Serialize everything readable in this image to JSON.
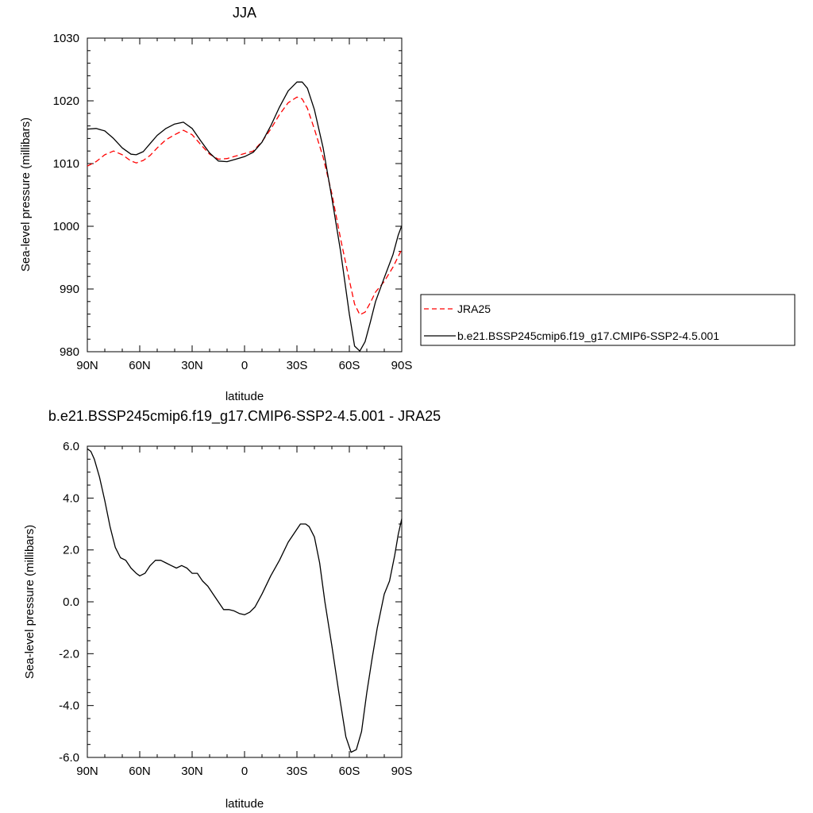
{
  "chart_data": [
    {
      "type": "line",
      "title": "JJA",
      "xlabel": "latitude",
      "ylabel": "Sea-level pressure (millibars)",
      "x_tick_labels": [
        "90N",
        "60N",
        "30N",
        "0",
        "30S",
        "60S",
        "90S"
      ],
      "x_tick_values": [
        90,
        60,
        30,
        0,
        -30,
        -60,
        -90
      ],
      "xlim": [
        90,
        -90
      ],
      "y_tick_labels": [
        "980",
        "990",
        "1000",
        "1010",
        "1020",
        "1030"
      ],
      "y_tick_values": [
        980,
        990,
        1000,
        1010,
        1020,
        1030
      ],
      "ylim": [
        980,
        1030
      ],
      "grid": false,
      "legend_position": "right",
      "series": [
        {
          "name": "JRA25",
          "color": "#ff0000",
          "dash": "dashed",
          "points": [
            [
              90,
              1009.6
            ],
            [
              85,
              1010.3
            ],
            [
              80,
              1011.4
            ],
            [
              75,
              1012.0
            ],
            [
              70,
              1011.4
            ],
            [
              65,
              1010.4
            ],
            [
              62,
              1010.1
            ],
            [
              58,
              1010.5
            ],
            [
              54,
              1011.3
            ],
            [
              50,
              1012.5
            ],
            [
              45,
              1013.8
            ],
            [
              40,
              1014.6
            ],
            [
              35,
              1015.3
            ],
            [
              30,
              1014.6
            ],
            [
              25,
              1013.0
            ],
            [
              20,
              1011.5
            ],
            [
              15,
              1010.7
            ],
            [
              10,
              1010.8
            ],
            [
              5,
              1011.2
            ],
            [
              0,
              1011.6
            ],
            [
              -5,
              1012.0
            ],
            [
              -10,
              1013.5
            ],
            [
              -15,
              1015.5
            ],
            [
              -20,
              1017.8
            ],
            [
              -25,
              1019.7
            ],
            [
              -30,
              1020.6
            ],
            [
              -33,
              1020.3
            ],
            [
              -36,
              1018.8
            ],
            [
              -40,
              1015.5
            ],
            [
              -45,
              1011.0
            ],
            [
              -50,
              1005.2
            ],
            [
              -55,
              998.0
            ],
            [
              -60,
              991.4
            ],
            [
              -63,
              987.6
            ],
            [
              -66,
              985.9
            ],
            [
              -69,
              986.3
            ],
            [
              -72,
              987.8
            ],
            [
              -75,
              989.5
            ],
            [
              -80,
              991.2
            ],
            [
              -85,
              993.5
            ],
            [
              -90,
              996.3
            ]
          ]
        },
        {
          "name": "b.e21.BSSP245cmip6.f19_g17.CMIP6-SSP2-4.5.001",
          "color": "#000000",
          "dash": "solid",
          "points": [
            [
              90,
              1015.5
            ],
            [
              85,
              1015.6
            ],
            [
              80,
              1015.2
            ],
            [
              75,
              1014.0
            ],
            [
              70,
              1012.5
            ],
            [
              65,
              1011.5
            ],
            [
              62,
              1011.4
            ],
            [
              58,
              1011.9
            ],
            [
              54,
              1013.2
            ],
            [
              50,
              1014.5
            ],
            [
              45,
              1015.6
            ],
            [
              40,
              1016.3
            ],
            [
              35,
              1016.6
            ],
            [
              30,
              1015.6
            ],
            [
              25,
              1013.6
            ],
            [
              20,
              1011.7
            ],
            [
              15,
              1010.4
            ],
            [
              10,
              1010.3
            ],
            [
              5,
              1010.7
            ],
            [
              0,
              1011.1
            ],
            [
              -5,
              1011.8
            ],
            [
              -10,
              1013.4
            ],
            [
              -15,
              1016.0
            ],
            [
              -20,
              1019.0
            ],
            [
              -25,
              1021.6
            ],
            [
              -30,
              1023.0
            ],
            [
              -33,
              1023.0
            ],
            [
              -36,
              1022.0
            ],
            [
              -40,
              1018.6
            ],
            [
              -45,
              1012.5
            ],
            [
              -50,
              1004.5
            ],
            [
              -55,
              996.0
            ],
            [
              -60,
              986.0
            ],
            [
              -63,
              980.9
            ],
            [
              -66,
              980.1
            ],
            [
              -69,
              981.6
            ],
            [
              -72,
              984.7
            ],
            [
              -75,
              988.0
            ],
            [
              -80,
              991.8
            ],
            [
              -85,
              995.5
            ],
            [
              -88,
              998.6
            ],
            [
              -90,
              1000.1
            ]
          ]
        }
      ]
    },
    {
      "type": "line",
      "title": "b.e21.BSSP245cmip6.f19_g17.CMIP6-SSP2-4.5.001 - JRA25",
      "xlabel": "latitude",
      "ylabel": "Sea-level pressure (millibars)",
      "x_tick_labels": [
        "90N",
        "60N",
        "30N",
        "0",
        "30S",
        "60S",
        "90S"
      ],
      "x_tick_values": [
        90,
        60,
        30,
        0,
        -30,
        -60,
        -90
      ],
      "xlim": [
        90,
        -90
      ],
      "y_tick_labels": [
        "-6.0",
        "-4.0",
        "-2.0",
        "0.0",
        "2.0",
        "4.0",
        "6.0"
      ],
      "y_tick_values": [
        -6,
        -4,
        -2,
        0,
        2,
        4,
        6
      ],
      "ylim": [
        -6,
        6
      ],
      "grid": false,
      "series": [
        {
          "name": "",
          "color": "#000000",
          "dash": "solid",
          "points": [
            [
              90,
              5.9
            ],
            [
              88,
              5.8
            ],
            [
              86,
              5.5
            ],
            [
              83,
              4.8
            ],
            [
              80,
              3.9
            ],
            [
              77,
              2.9
            ],
            [
              74,
              2.1
            ],
            [
              71,
              1.7
            ],
            [
              68,
              1.6
            ],
            [
              65,
              1.3
            ],
            [
              62,
              1.1
            ],
            [
              60,
              1.0
            ],
            [
              57,
              1.1
            ],
            [
              54,
              1.4
            ],
            [
              51,
              1.6
            ],
            [
              48,
              1.6
            ],
            [
              45,
              1.5
            ],
            [
              42,
              1.4
            ],
            [
              39,
              1.3
            ],
            [
              36,
              1.4
            ],
            [
              33,
              1.3
            ],
            [
              30,
              1.1
            ],
            [
              27,
              1.1
            ],
            [
              24,
              0.8
            ],
            [
              21,
              0.6
            ],
            [
              18,
              0.3
            ],
            [
              15,
              0.0
            ],
            [
              12,
              -0.3
            ],
            [
              9,
              -0.3
            ],
            [
              6,
              -0.35
            ],
            [
              3,
              -0.45
            ],
            [
              0,
              -0.5
            ],
            [
              -3,
              -0.4
            ],
            [
              -6,
              -0.2
            ],
            [
              -10,
              0.3
            ],
            [
              -15,
              1.0
            ],
            [
              -20,
              1.6
            ],
            [
              -25,
              2.3
            ],
            [
              -30,
              2.8
            ],
            [
              -32,
              3.0
            ],
            [
              -35,
              3.0
            ],
            [
              -37,
              2.9
            ],
            [
              -40,
              2.5
            ],
            [
              -43,
              1.5
            ],
            [
              -46,
              0.0
            ],
            [
              -50,
              -1.7
            ],
            [
              -54,
              -3.5
            ],
            [
              -58,
              -5.2
            ],
            [
              -61,
              -5.8
            ],
            [
              -64,
              -5.7
            ],
            [
              -67,
              -5.0
            ],
            [
              -70,
              -3.5
            ],
            [
              -73,
              -2.2
            ],
            [
              -76,
              -1.0
            ],
            [
              -80,
              0.3
            ],
            [
              -83,
              0.8
            ],
            [
              -86,
              1.8
            ],
            [
              -88,
              2.6
            ],
            [
              -90,
              3.2
            ]
          ]
        }
      ]
    }
  ]
}
